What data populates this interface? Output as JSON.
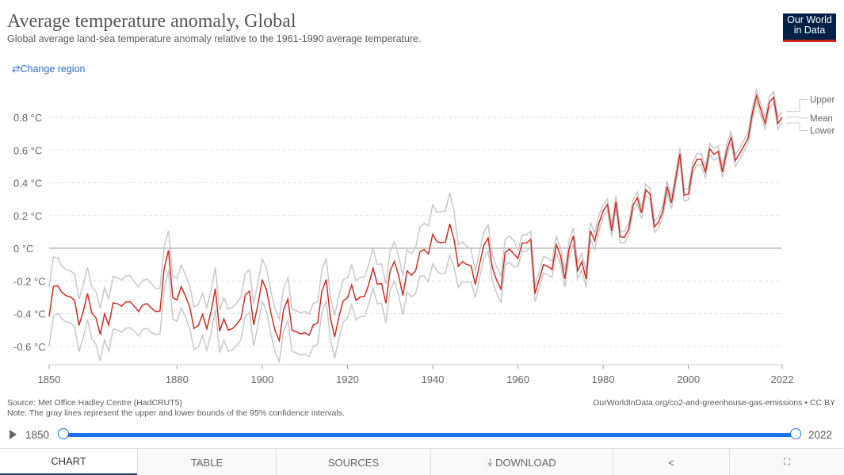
{
  "header": {
    "title": "Average temperature anomaly, Global",
    "subtitle": "Global average land-sea temperature anomaly relative to the 1961-1990 average temperature.",
    "logo": "Our World in Data",
    "change_region": "Change region"
  },
  "footer": {
    "source": "Source: Met Office Hadley Centre (HadCRUT5)",
    "note": "Note: The gray lines represent the upper and lower bounds of the 95% confidence intervals.",
    "url": "OurWorldInData.org/co2-and-greenhouse-gas-emissions • CC BY"
  },
  "timeline": {
    "start": "1850",
    "end": "2022"
  },
  "tabs": [
    {
      "label": "CHART",
      "icon": ""
    },
    {
      "label": "TABLE",
      "icon": ""
    },
    {
      "label": "SOURCES",
      "icon": ""
    },
    {
      "label": "DOWNLOAD",
      "icon": "download-icon"
    },
    {
      "label": "",
      "icon": "share-icon"
    },
    {
      "label": "",
      "icon": "fullscreen-icon"
    }
  ],
  "colors": {
    "mean": "#d42b21",
    "bounds": "#c8c8c8",
    "accent": "#1a73e8"
  },
  "chart_data": {
    "type": "line",
    "title": "Average temperature anomaly, Global",
    "ylabel": "°C",
    "xlim": [
      1850,
      2022
    ],
    "ylim": [
      -0.7,
      0.95
    ],
    "yticks": [
      {
        "v": -0.6,
        "label": "-0.6 °C"
      },
      {
        "v": -0.4,
        "label": "-0.4 °C"
      },
      {
        "v": -0.2,
        "label": "-0.2 °C"
      },
      {
        "v": 0,
        "label": "0 °C"
      },
      {
        "v": 0.2,
        "label": "0.2 °C"
      },
      {
        "v": 0.4,
        "label": "0.4 °C"
      },
      {
        "v": 0.6,
        "label": "0.6 °C"
      },
      {
        "v": 0.8,
        "label": "0.8 °C"
      }
    ],
    "xticks": [
      "1850",
      "1880",
      "1900",
      "1920",
      "1940",
      "1960",
      "1980",
      "2000",
      "2022"
    ],
    "legend": [
      "Upper",
      "Mean",
      "Lower"
    ],
    "x_start": 1850,
    "mean": [
      -0.418,
      -0.233,
      -0.229,
      -0.27,
      -0.291,
      -0.297,
      -0.32,
      -0.472,
      -0.388,
      -0.277,
      -0.394,
      -0.428,
      -0.528,
      -0.401,
      -0.471,
      -0.334,
      -0.339,
      -0.355,
      -0.329,
      -0.327,
      -0.356,
      -0.387,
      -0.346,
      -0.339,
      -0.367,
      -0.387,
      -0.385,
      -0.124,
      -0.013,
      -0.303,
      -0.316,
      -0.234,
      -0.294,
      -0.36,
      -0.49,
      -0.473,
      -0.405,
      -0.493,
      -0.386,
      -0.248,
      -0.508,
      -0.432,
      -0.501,
      -0.491,
      -0.466,
      -0.43,
      -0.286,
      -0.262,
      -0.469,
      -0.342,
      -0.196,
      -0.254,
      -0.392,
      -0.502,
      -0.565,
      -0.377,
      -0.311,
      -0.501,
      -0.511,
      -0.524,
      -0.517,
      -0.533,
      -0.468,
      -0.458,
      -0.262,
      -0.192,
      -0.425,
      -0.543,
      -0.418,
      -0.322,
      -0.303,
      -0.225,
      -0.319,
      -0.298,
      -0.295,
      -0.221,
      -0.122,
      -0.22,
      -0.216,
      -0.337,
      -0.139,
      -0.081,
      -0.166,
      -0.289,
      -0.138,
      -0.166,
      -0.137,
      -0.022,
      -0.008,
      -0.035,
      0.085,
      0.04,
      0.033,
      0.038,
      0.149,
      0.054,
      -0.11,
      -0.082,
      -0.1,
      -0.107,
      -0.223,
      -0.097,
      0.017,
      0.063,
      -0.12,
      -0.196,
      -0.25,
      -0.026,
      -0.006,
      -0.034,
      -0.063,
      0.031,
      0.032,
      0.054,
      -0.279,
      -0.19,
      -0.101,
      -0.111,
      -0.13,
      0.022,
      -0.046,
      -0.188,
      -0.005,
      0.075,
      -0.137,
      -0.082,
      -0.189,
      0.107,
      0.043,
      0.154,
      0.228,
      0.267,
      0.107,
      0.284,
      0.07,
      0.067,
      0.119,
      0.262,
      0.309,
      0.216,
      0.357,
      0.332,
      0.131,
      0.16,
      0.226,
      0.377,
      0.277,
      0.422,
      0.577,
      0.324,
      0.331,
      0.489,
      0.543,
      0.544,
      0.467,
      0.607,
      0.573,
      0.592,
      0.467,
      0.597,
      0.68,
      0.536,
      0.578,
      0.624,
      0.673,
      0.825,
      0.933,
      0.845,
      0.763,
      0.891,
      0.923,
      0.762,
      0.801
    ],
    "ci_halfwidth": [
      0.18,
      0.18,
      0.17,
      0.16,
      0.16,
      0.16,
      0.16,
      0.16,
      0.16,
      0.16,
      0.16,
      0.16,
      0.16,
      0.16,
      0.16,
      0.16,
      0.16,
      0.16,
      0.16,
      0.16,
      0.15,
      0.15,
      0.15,
      0.15,
      0.15,
      0.14,
      0.14,
      0.13,
      0.12,
      0.13,
      0.13,
      0.13,
      0.13,
      0.13,
      0.13,
      0.13,
      0.13,
      0.13,
      0.13,
      0.13,
      0.13,
      0.13,
      0.13,
      0.13,
      0.13,
      0.13,
      0.13,
      0.13,
      0.13,
      0.13,
      0.13,
      0.13,
      0.13,
      0.13,
      0.13,
      0.13,
      0.13,
      0.13,
      0.13,
      0.13,
      0.13,
      0.13,
      0.13,
      0.13,
      0.13,
      0.13,
      0.13,
      0.13,
      0.13,
      0.13,
      0.12,
      0.12,
      0.12,
      0.12,
      0.12,
      0.12,
      0.12,
      0.12,
      0.12,
      0.12,
      0.12,
      0.12,
      0.12,
      0.12,
      0.13,
      0.13,
      0.14,
      0.15,
      0.16,
      0.17,
      0.18,
      0.18,
      0.19,
      0.19,
      0.19,
      0.17,
      0.13,
      0.12,
      0.11,
      0.1,
      0.08,
      0.08,
      0.08,
      0.08,
      0.08,
      0.08,
      0.08,
      0.08,
      0.08,
      0.08,
      0.05,
      0.05,
      0.05,
      0.05,
      0.05,
      0.05,
      0.05,
      0.05,
      0.05,
      0.05,
      0.05,
      0.05,
      0.05,
      0.05,
      0.05,
      0.05,
      0.05,
      0.05,
      0.05,
      0.05,
      0.035,
      0.035,
      0.035,
      0.035,
      0.035,
      0.035,
      0.035,
      0.035,
      0.035,
      0.035,
      0.035,
      0.035,
      0.035,
      0.035,
      0.035,
      0.035,
      0.035,
      0.035,
      0.035,
      0.035,
      0.035,
      0.035,
      0.035,
      0.035,
      0.035,
      0.035,
      0.035,
      0.035,
      0.035,
      0.035,
      0.035,
      0.035,
      0.035,
      0.035,
      0.035,
      0.035,
      0.035,
      0.035,
      0.035,
      0.035,
      0.035,
      0.035,
      0.035
    ]
  }
}
